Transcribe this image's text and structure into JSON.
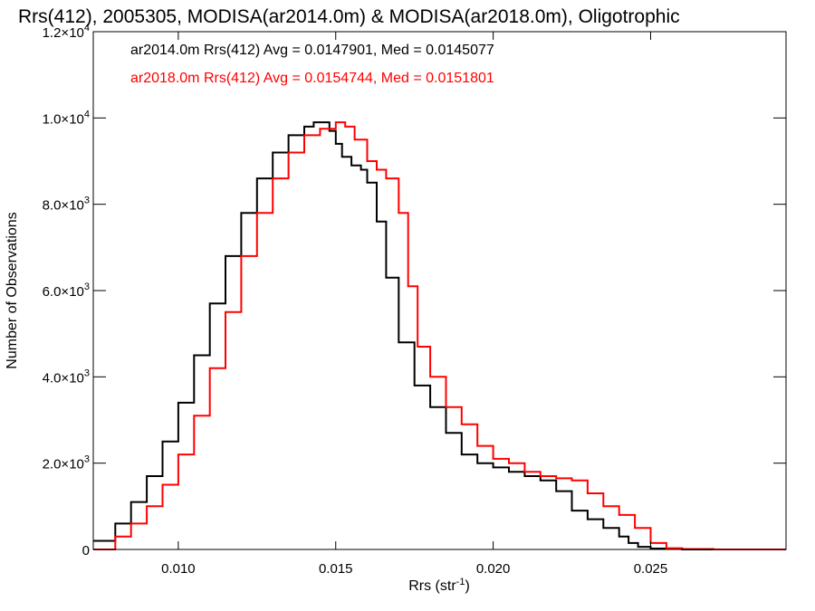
{
  "chart_data": {
    "type": "line",
    "title": "Rrs(412), 2005305, MODISA(ar2014.0m) & MODISA(ar2018.0m), Oligotrophic",
    "xlabel": "Rrs (str",
    "xlabel_sup": "-1",
    "xlabel_close": ")",
    "ylabel": "Number of Observations",
    "xlim": [
      0.0073,
      0.0293
    ],
    "ylim": [
      0,
      12000
    ],
    "grid": false,
    "legend_position": "top-left",
    "x_ticks": [
      {
        "value": 0.01,
        "label": "0.010"
      },
      {
        "value": 0.015,
        "label": "0.015"
      },
      {
        "value": 0.02,
        "label": "0.020"
      },
      {
        "value": 0.025,
        "label": "0.025"
      }
    ],
    "y_ticks": [
      {
        "value": 0,
        "mant": "0",
        "exp": ""
      },
      {
        "value": 2000,
        "mant": "2.0×10",
        "exp": "3"
      },
      {
        "value": 4000,
        "mant": "4.0×10",
        "exp": "3"
      },
      {
        "value": 6000,
        "mant": "6.0×10",
        "exp": "3"
      },
      {
        "value": 8000,
        "mant": "8.0×10",
        "exp": "3"
      },
      {
        "value": 10000,
        "mant": "1.0×10",
        "exp": "4"
      },
      {
        "value": 12000,
        "mant": "1.2×10",
        "exp": "4"
      }
    ],
    "series": [
      {
        "name": "ar2014.0m",
        "legend": "ar2014.0m Rrs(412) Avg = 0.0147901, Med = 0.0145077",
        "color": "#000000",
        "x": [
          0.0073,
          0.008,
          0.0085,
          0.009,
          0.0095,
          0.01,
          0.0105,
          0.011,
          0.0115,
          0.012,
          0.0125,
          0.013,
          0.0135,
          0.014,
          0.0143,
          0.0146,
          0.0148,
          0.015,
          0.0152,
          0.0155,
          0.0158,
          0.016,
          0.0163,
          0.0166,
          0.017,
          0.0175,
          0.018,
          0.0185,
          0.019,
          0.0195,
          0.02,
          0.0205,
          0.021,
          0.0215,
          0.022,
          0.0225,
          0.023,
          0.0235,
          0.024,
          0.0243,
          0.0246,
          0.025,
          0.026,
          0.027,
          0.0293
        ],
        "values": [
          200,
          600,
          1100,
          1700,
          2500,
          3400,
          4500,
          5700,
          6800,
          7800,
          8600,
          9200,
          9600,
          9800,
          9900,
          9900,
          9700,
          9400,
          9100,
          8900,
          8800,
          8500,
          7600,
          6300,
          4800,
          3800,
          3300,
          2700,
          2200,
          2000,
          1900,
          1800,
          1700,
          1600,
          1350,
          900,
          700,
          500,
          300,
          150,
          60,
          20,
          0,
          0,
          0
        ]
      },
      {
        "name": "ar2018.0m",
        "legend": "ar2018.0m Rrs(412) Avg = 0.0154744, Med = 0.0151801",
        "color": "#ff0000",
        "x": [
          0.0073,
          0.008,
          0.0085,
          0.009,
          0.0095,
          0.01,
          0.0105,
          0.011,
          0.0115,
          0.012,
          0.0125,
          0.013,
          0.0135,
          0.014,
          0.0145,
          0.015,
          0.0153,
          0.0156,
          0.016,
          0.0163,
          0.0166,
          0.017,
          0.0173,
          0.0176,
          0.018,
          0.0185,
          0.019,
          0.0195,
          0.02,
          0.0205,
          0.021,
          0.0215,
          0.022,
          0.0225,
          0.023,
          0.0235,
          0.024,
          0.0245,
          0.025,
          0.0255,
          0.026,
          0.027,
          0.0293
        ],
        "values": [
          0,
          300,
          600,
          1000,
          1500,
          2200,
          3100,
          4200,
          5500,
          6800,
          7800,
          8600,
          9200,
          9600,
          9750,
          9900,
          9800,
          9500,
          9000,
          8800,
          8600,
          7800,
          6100,
          4700,
          4000,
          3300,
          2900,
          2400,
          2100,
          2000,
          1800,
          1700,
          1650,
          1600,
          1300,
          1000,
          800,
          500,
          150,
          30,
          10,
          0,
          0
        ]
      }
    ]
  }
}
